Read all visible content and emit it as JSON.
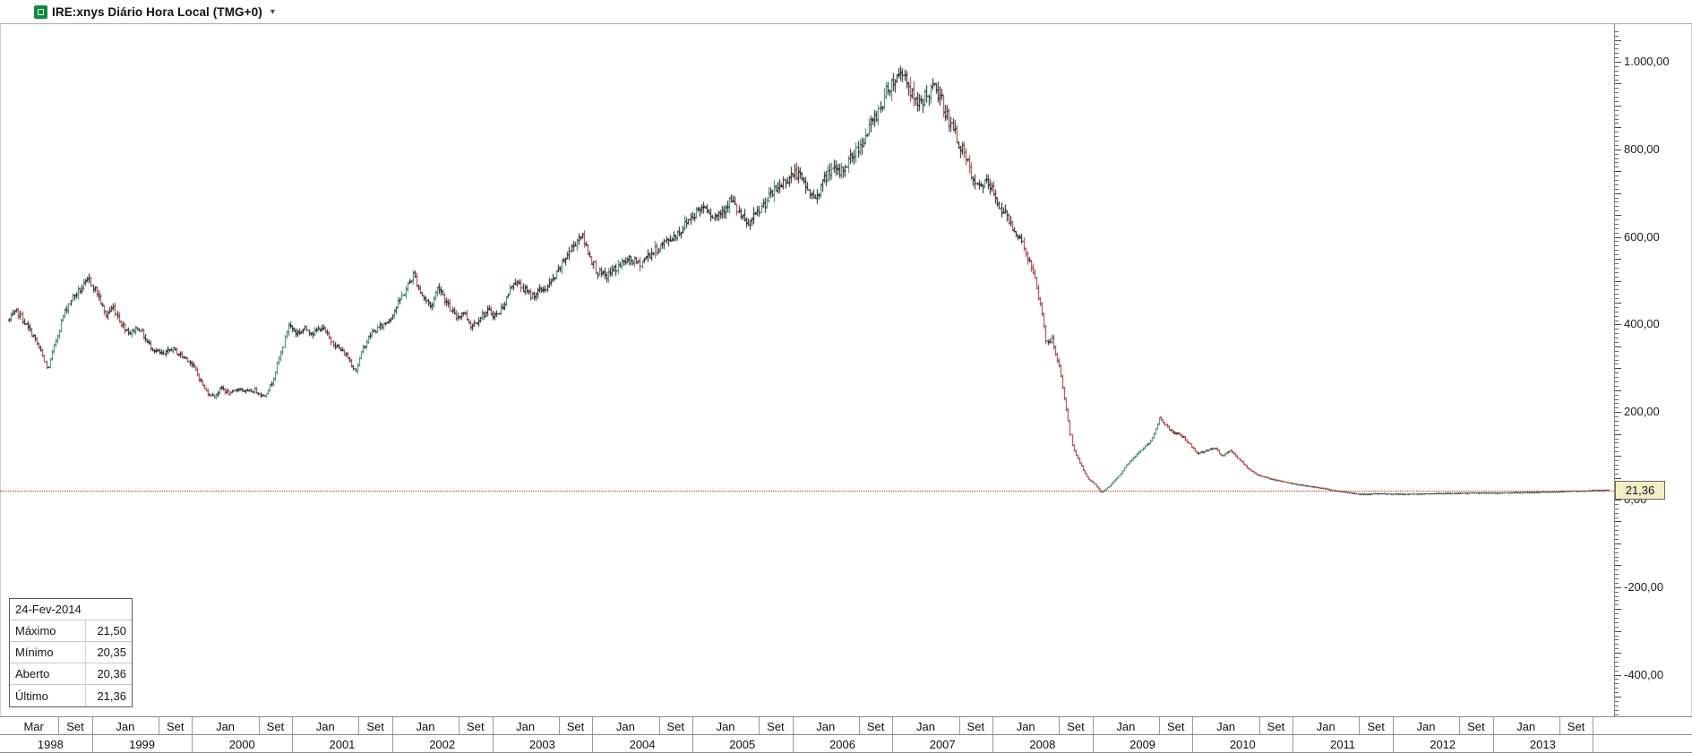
{
  "window": {
    "title": "IRE:xnys Diário Hora Local (TMG+0)"
  },
  "icons": {
    "dropdown_caret": "▾"
  },
  "last_price_tag": "21,36",
  "info_box": {
    "date": "24-Fev-2014",
    "rows": [
      {
        "label": "Máximo",
        "value": "21,50"
      },
      {
        "label": "Mínimo",
        "value": "20,35"
      },
      {
        "label": "Aberto",
        "value": "20,36"
      },
      {
        "label": "Último",
        "value": "21,36"
      }
    ]
  },
  "chart_data": {
    "type": "candlestick",
    "title": "IRE:xnys Diário Hora Local (TMG+0)",
    "x_range_years": [
      1998.17,
      2014.15
    ],
    "last": {
      "date": "24-Fev-2014",
      "high": 21.5,
      "low": 20.35,
      "open": 20.36,
      "close": 21.36
    },
    "colors": {
      "up": "#2e7d6e",
      "down": "#9e2f2f",
      "neutral": "#141414",
      "last_price_line": "#d82b00"
    },
    "y_axis": {
      "visible_range": [
        -400,
        1000
      ],
      "ticks": [
        {
          "value": 1000,
          "label": "1.000,00"
        },
        {
          "value": 800,
          "label": "800,00"
        },
        {
          "value": 600,
          "label": "600,00"
        },
        {
          "value": 400,
          "label": "400,00"
        },
        {
          "value": 200,
          "label": "200,00"
        },
        {
          "value": 0,
          "label": "0,00"
        },
        {
          "value": -200,
          "label": "-200,00"
        },
        {
          "value": -400,
          "label": "-400,00"
        }
      ]
    },
    "x_axis": {
      "month_labels": [
        "Mar",
        "Set",
        "Jan",
        "Set",
        "Jan",
        "Set",
        "Jan",
        "Set",
        "Jan",
        "Set",
        "Jan",
        "Set",
        "Jan",
        "Set",
        "Jan",
        "Set",
        "Jan",
        "Set",
        "Jan",
        "Set",
        "Jan",
        "Set",
        "Jan",
        "Set",
        "Jan",
        "Set",
        "Jan",
        "Set",
        "Jan",
        "Set",
        "Jan",
        "Set"
      ],
      "month_boundaries": [
        1998.17,
        1998.665,
        1999,
        1999.665,
        2000,
        2000.665,
        2001,
        2001.665,
        2002,
        2002.665,
        2003,
        2003.665,
        2004,
        2004.665,
        2005,
        2005.665,
        2006,
        2006.665,
        2007,
        2007.665,
        2008,
        2008.665,
        2009,
        2009.665,
        2010,
        2010.665,
        2011,
        2011.665,
        2012,
        2012.665,
        2013,
        2013.665,
        2014
      ],
      "years": [
        "1998",
        "1999",
        "2000",
        "2001",
        "2002",
        "2003",
        "2004",
        "2005",
        "2006",
        "2007",
        "2008",
        "2009",
        "2010",
        "2011",
        "2012",
        "2013"
      ]
    },
    "series_anchors": [
      [
        1998.17,
        410
      ],
      [
        1998.25,
        430
      ],
      [
        1998.33,
        400
      ],
      [
        1998.42,
        370
      ],
      [
        1998.5,
        330
      ],
      [
        1998.55,
        295
      ],
      [
        1998.63,
        360
      ],
      [
        1998.71,
        420
      ],
      [
        1998.79,
        460
      ],
      [
        1998.88,
        480
      ],
      [
        1998.97,
        502
      ],
      [
        1999.05,
        470
      ],
      [
        1999.13,
        420
      ],
      [
        1999.21,
        440
      ],
      [
        1999.29,
        400
      ],
      [
        1999.38,
        380
      ],
      [
        1999.46,
        395
      ],
      [
        1999.54,
        360
      ],
      [
        1999.63,
        340
      ],
      [
        1999.71,
        330
      ],
      [
        1999.79,
        345
      ],
      [
        1999.88,
        330
      ],
      [
        1999.96,
        320
      ],
      [
        2000.04,
        290
      ],
      [
        2000.13,
        250
      ],
      [
        2000.21,
        235
      ],
      [
        2000.29,
        255
      ],
      [
        2000.38,
        240
      ],
      [
        2000.46,
        255
      ],
      [
        2000.54,
        245
      ],
      [
        2000.63,
        250
      ],
      [
        2000.71,
        235
      ],
      [
        2000.79,
        265
      ],
      [
        2000.88,
        330
      ],
      [
        2000.96,
        400
      ],
      [
        2001.04,
        380
      ],
      [
        2001.13,
        390
      ],
      [
        2001.21,
        380
      ],
      [
        2001.29,
        395
      ],
      [
        2001.38,
        365
      ],
      [
        2001.46,
        345
      ],
      [
        2001.54,
        330
      ],
      [
        2001.63,
        295
      ],
      [
        2001.71,
        350
      ],
      [
        2001.79,
        380
      ],
      [
        2001.88,
        395
      ],
      [
        2001.96,
        410
      ],
      [
        2002.04,
        440
      ],
      [
        2002.13,
        480
      ],
      [
        2002.21,
        515
      ],
      [
        2002.29,
        470
      ],
      [
        2002.38,
        440
      ],
      [
        2002.46,
        490
      ],
      [
        2002.54,
        450
      ],
      [
        2002.63,
        415
      ],
      [
        2002.71,
        430
      ],
      [
        2002.79,
        395
      ],
      [
        2002.88,
        420
      ],
      [
        2002.96,
        430
      ],
      [
        2003.04,
        420
      ],
      [
        2003.13,
        455
      ],
      [
        2003.21,
        500
      ],
      [
        2003.29,
        485
      ],
      [
        2003.38,
        465
      ],
      [
        2003.46,
        475
      ],
      [
        2003.54,
        485
      ],
      [
        2003.63,
        510
      ],
      [
        2003.71,
        545
      ],
      [
        2003.79,
        575
      ],
      [
        2003.88,
        607
      ],
      [
        2003.96,
        565
      ],
      [
        2004.04,
        520
      ],
      [
        2004.13,
        508
      ],
      [
        2004.21,
        525
      ],
      [
        2004.29,
        540
      ],
      [
        2004.38,
        548
      ],
      [
        2004.46,
        538
      ],
      [
        2004.54,
        555
      ],
      [
        2004.63,
        570
      ],
      [
        2004.71,
        585
      ],
      [
        2004.79,
        598
      ],
      [
        2004.88,
        615
      ],
      [
        2004.96,
        640
      ],
      [
        2005.04,
        660
      ],
      [
        2005.13,
        673
      ],
      [
        2005.21,
        645
      ],
      [
        2005.29,
        660
      ],
      [
        2005.38,
        685
      ],
      [
        2005.46,
        655
      ],
      [
        2005.54,
        625
      ],
      [
        2005.63,
        648
      ],
      [
        2005.71,
        675
      ],
      [
        2005.79,
        698
      ],
      [
        2005.88,
        718
      ],
      [
        2005.96,
        738
      ],
      [
        2006.04,
        746
      ],
      [
        2006.13,
        715
      ],
      [
        2006.21,
        685
      ],
      [
        2006.29,
        718
      ],
      [
        2006.38,
        755
      ],
      [
        2006.46,
        742
      ],
      [
        2006.54,
        768
      ],
      [
        2006.63,
        795
      ],
      [
        2006.71,
        825
      ],
      [
        2006.79,
        858
      ],
      [
        2006.88,
        900
      ],
      [
        2006.96,
        945
      ],
      [
        2007.04,
        965
      ],
      [
        2007.1,
        980
      ],
      [
        2007.17,
        935
      ],
      [
        2007.25,
        895
      ],
      [
        2007.33,
        925
      ],
      [
        2007.42,
        940
      ],
      [
        2007.5,
        905
      ],
      [
        2007.58,
        855
      ],
      [
        2007.67,
        810
      ],
      [
        2007.75,
        765
      ],
      [
        2007.83,
        710
      ],
      [
        2007.92,
        725
      ],
      [
        2008.0,
        705
      ],
      [
        2008.08,
        665
      ],
      [
        2008.17,
        635
      ],
      [
        2008.25,
        605
      ],
      [
        2008.33,
        565
      ],
      [
        2008.42,
        500
      ],
      [
        2008.5,
        420
      ],
      [
        2008.54,
        350
      ],
      [
        2008.58,
        370
      ],
      [
        2008.63,
        330
      ],
      [
        2008.67,
        295
      ],
      [
        2008.71,
        245
      ],
      [
        2008.75,
        185
      ],
      [
        2008.79,
        125
      ],
      [
        2008.83,
        100
      ],
      [
        2008.88,
        80
      ],
      [
        2008.92,
        60
      ],
      [
        2008.96,
        45
      ],
      [
        2009.0,
        40
      ],
      [
        2009.08,
        16
      ],
      [
        2009.17,
        32
      ],
      [
        2009.25,
        52
      ],
      [
        2009.33,
        78
      ],
      [
        2009.42,
        98
      ],
      [
        2009.5,
        118
      ],
      [
        2009.58,
        135
      ],
      [
        2009.63,
        160
      ],
      [
        2009.67,
        193
      ],
      [
        2009.71,
        172
      ],
      [
        2009.79,
        155
      ],
      [
        2009.88,
        148
      ],
      [
        2009.96,
        128
      ],
      [
        2010.04,
        105
      ],
      [
        2010.13,
        112
      ],
      [
        2010.21,
        118
      ],
      [
        2010.29,
        100
      ],
      [
        2010.38,
        112
      ],
      [
        2010.46,
        92
      ],
      [
        2010.54,
        72
      ],
      [
        2010.63,
        58
      ],
      [
        2010.71,
        52
      ],
      [
        2010.79,
        46
      ],
      [
        2010.88,
        42
      ],
      [
        2010.96,
        38
      ],
      [
        2011.04,
        34
      ],
      [
        2011.17,
        30
      ],
      [
        2011.29,
        26
      ],
      [
        2011.42,
        20
      ],
      [
        2011.54,
        16
      ],
      [
        2011.67,
        12
      ],
      [
        2011.79,
        13
      ],
      [
        2011.92,
        13
      ],
      [
        2012.04,
        12
      ],
      [
        2012.29,
        13
      ],
      [
        2012.54,
        14
      ],
      [
        2012.79,
        15
      ],
      [
        2013.04,
        15
      ],
      [
        2013.29,
        16
      ],
      [
        2013.54,
        17
      ],
      [
        2013.79,
        19
      ],
      [
        2014.0,
        20
      ],
      [
        2014.08,
        21
      ],
      [
        2014.15,
        21.36
      ]
    ]
  }
}
